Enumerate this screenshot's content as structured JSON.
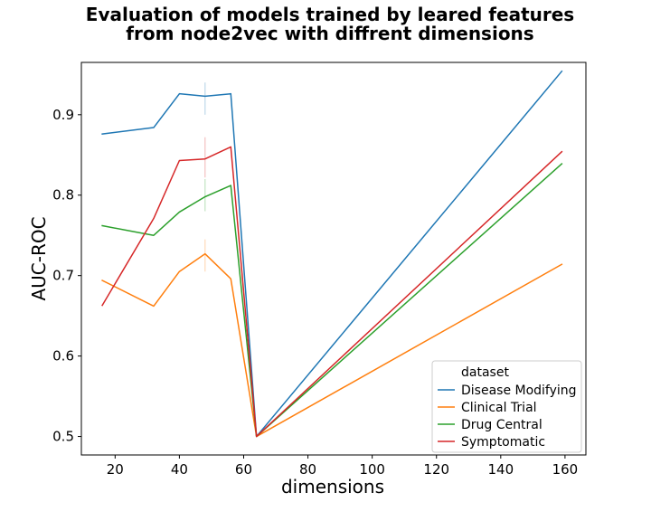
{
  "chart_data": {
    "type": "line",
    "title_line1": "Evaluation of models trained by leared features",
    "title_line2": "from node2vec with diffrent dimensions",
    "xlabel": "dimensions",
    "ylabel": "AUC-ROC",
    "xlim": [
      9.5,
      166.5
    ],
    "ylim": [
      0.477,
      0.965
    ],
    "xticks": [
      20,
      40,
      60,
      80,
      100,
      120,
      140,
      160
    ],
    "yticks": [
      0.5,
      0.6,
      0.7,
      0.8,
      0.9
    ],
    "grid": false,
    "legend": {
      "title": "dataset",
      "placement": "lower-right"
    },
    "x": [
      16,
      32,
      40,
      48,
      56,
      64,
      159
    ],
    "series": [
      {
        "name": "Disease Modifying",
        "color": "#1f77b4",
        "values": [
          0.876,
          0.884,
          0.926,
          0.923,
          0.926,
          0.5,
          0.954
        ],
        "band": [
          0.9,
          0.94
        ]
      },
      {
        "name": "Clinical Trial",
        "color": "#ff7f0e",
        "values": [
          0.694,
          0.662,
          0.705,
          0.727,
          0.696,
          0.5,
          0.714
        ],
        "band": [
          0.705,
          0.745
        ]
      },
      {
        "name": "Drug Central",
        "color": "#2ca02c",
        "values": [
          0.762,
          0.75,
          0.779,
          0.798,
          0.812,
          0.5,
          0.839
        ],
        "band": [
          0.78,
          0.82
        ]
      },
      {
        "name": "Symptomatic",
        "color": "#d62728",
        "values": [
          0.663,
          0.771,
          0.843,
          0.845,
          0.86,
          0.5,
          0.854
        ],
        "band": [
          0.822,
          0.872
        ]
      }
    ],
    "band_x": 48
  }
}
